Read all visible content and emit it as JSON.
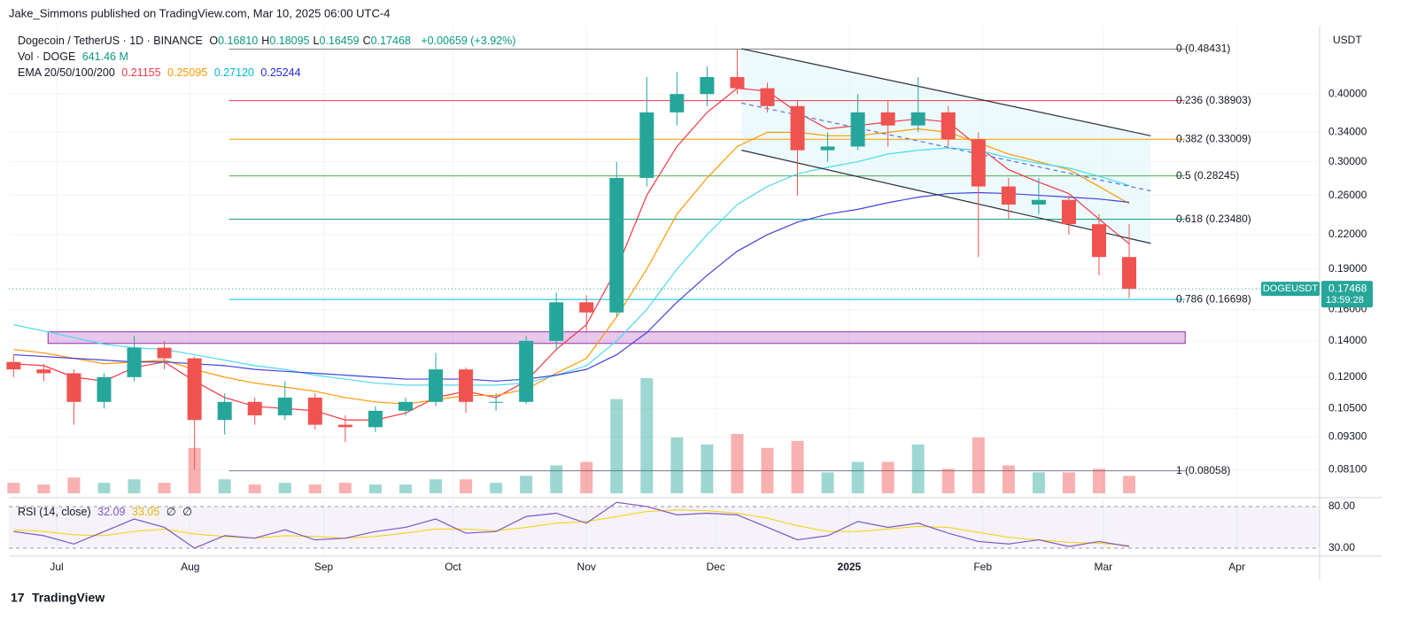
{
  "page": {
    "attribution": "Jake_Simmons published on TradingView.com, Mar 10, 2025 06:00 UTC-4",
    "footer": "TradingView",
    "currency": "USDT"
  },
  "header": {
    "symbol": "Dogecoin / TetherUS · 1D · BINANCE",
    "ohlc": [
      {
        "key": "O",
        "value": "0.16810"
      },
      {
        "key": "H",
        "value": "0.18095"
      },
      {
        "key": "L",
        "value": "0.16459"
      },
      {
        "key": "C",
        "value": "0.17468"
      }
    ],
    "change": "+0.00659 (+3.92%)",
    "vol_label": "Vol · DOGE",
    "vol_value": "641.46 M",
    "ema_label": "EMA 20/50/100/200",
    "ema_values": [
      "0.21155",
      "0.25095",
      "0.27120",
      "0.25244"
    ],
    "rsi_label": "RSI (14, close)",
    "rsi_values": [
      "32.09",
      "33.05",
      "∅",
      "∅"
    ]
  },
  "chart_data": {
    "type": "candlestick",
    "log_scale": true,
    "grid": true,
    "up_color": "#26a69a",
    "down_color": "#ef5350",
    "xlim": [
      -11.1,
      293.2
    ],
    "xticks": [
      {
        "value": 0,
        "label": "Jul"
      },
      {
        "value": 31,
        "label": "Aug"
      },
      {
        "value": 62,
        "label": "Sep"
      },
      {
        "value": 92,
        "label": "Oct"
      },
      {
        "value": 123,
        "label": "Nov"
      },
      {
        "value": 153,
        "label": "Dec"
      },
      {
        "value": 184,
        "label": "2025"
      },
      {
        "value": 215,
        "label": "Feb"
      },
      {
        "value": 243,
        "label": "Mar"
      },
      {
        "value": 274,
        "label": "Apr"
      }
    ],
    "ylim": [
      0.0724,
      0.533
    ],
    "yticks": [
      {
        "value": 0.4,
        "label": "0.40000"
      },
      {
        "value": 0.34,
        "label": "0.34000"
      },
      {
        "value": 0.3,
        "label": "0.30000"
      },
      {
        "value": 0.26,
        "label": "0.26000"
      },
      {
        "value": 0.22,
        "label": "0.22000"
      },
      {
        "value": 0.19,
        "label": "0.19000"
      },
      {
        "value": 0.16,
        "label": "0.16000"
      },
      {
        "value": 0.14,
        "label": "0.14000"
      },
      {
        "value": 0.12,
        "label": "0.12000"
      },
      {
        "value": 0.105,
        "label": "0.10500"
      },
      {
        "value": 0.093,
        "label": "0.09300"
      },
      {
        "value": 0.081,
        "label": "0.08100"
      }
    ],
    "x": [
      -10,
      -3,
      4,
      11,
      18,
      25,
      32,
      39,
      46,
      53,
      60,
      67,
      74,
      81,
      88,
      95,
      102,
      109,
      116,
      123,
      130,
      137,
      144,
      151,
      158,
      165,
      172,
      179,
      186,
      193,
      200,
      207,
      214,
      221,
      228,
      235,
      242,
      249
    ],
    "open": [
      0.128,
      0.124,
      0.122,
      0.108,
      0.12,
      0.136,
      0.13,
      0.1,
      0.108,
      0.102,
      0.11,
      0.098,
      0.097,
      0.104,
      0.108,
      0.124,
      0.108,
      0.108,
      0.14,
      0.165,
      0.158,
      0.28,
      0.37,
      0.4,
      0.43,
      0.41,
      0.38,
      0.315,
      0.32,
      0.37,
      0.35,
      0.37,
      0.33,
      0.27,
      0.25,
      0.255,
      0.23,
      0.2
    ],
    "high": [
      0.132,
      0.127,
      0.124,
      0.122,
      0.143,
      0.14,
      0.131,
      0.112,
      0.11,
      0.118,
      0.112,
      0.102,
      0.106,
      0.11,
      0.133,
      0.125,
      0.112,
      0.143,
      0.172,
      0.17,
      0.3,
      0.43,
      0.44,
      0.45,
      0.485,
      0.42,
      0.39,
      0.34,
      0.4,
      0.39,
      0.43,
      0.38,
      0.34,
      0.28,
      0.28,
      0.26,
      0.24,
      0.23
    ],
    "low": [
      0.12,
      0.118,
      0.098,
      0.105,
      0.118,
      0.124,
      0.081,
      0.094,
      0.098,
      0.1,
      0.096,
      0.091,
      0.095,
      0.102,
      0.106,
      0.103,
      0.104,
      0.107,
      0.135,
      0.146,
      0.155,
      0.27,
      0.35,
      0.38,
      0.4,
      0.37,
      0.26,
      0.3,
      0.315,
      0.32,
      0.34,
      0.32,
      0.2,
      0.235,
      0.24,
      0.22,
      0.185,
      0.168
    ],
    "close": [
      0.124,
      0.122,
      0.108,
      0.12,
      0.136,
      0.13,
      0.1,
      0.108,
      0.102,
      0.11,
      0.098,
      0.097,
      0.104,
      0.108,
      0.124,
      0.108,
      0.108,
      0.14,
      0.165,
      0.158,
      0.28,
      0.37,
      0.4,
      0.43,
      0.41,
      0.38,
      0.315,
      0.32,
      0.37,
      0.35,
      0.37,
      0.33,
      0.27,
      0.25,
      0.255,
      0.23,
      0.2,
      0.17468
    ],
    "volume": [
      30,
      25,
      45,
      30,
      40,
      30,
      130,
      40,
      25,
      30,
      25,
      30,
      25,
      25,
      40,
      40,
      30,
      50,
      80,
      90,
      270,
      330,
      160,
      140,
      170,
      130,
      150,
      60,
      90,
      90,
      140,
      70,
      160,
      80,
      60,
      60,
      70,
      50
    ],
    "ema": [
      {
        "color": "#f23645",
        "values": [
          0.127,
          0.126,
          0.12,
          0.118,
          0.125,
          0.128,
          0.118,
          0.11,
          0.106,
          0.105,
          0.104,
          0.1,
          0.1,
          0.103,
          0.11,
          0.113,
          0.11,
          0.118,
          0.135,
          0.15,
          0.19,
          0.26,
          0.32,
          0.37,
          0.41,
          0.405,
          0.37,
          0.345,
          0.35,
          0.355,
          0.36,
          0.355,
          0.32,
          0.29,
          0.275,
          0.262,
          0.235,
          0.21155
        ]
      },
      {
        "color": "#ff9800",
        "values": [
          0.135,
          0.133,
          0.13,
          0.127,
          0.128,
          0.129,
          0.124,
          0.12,
          0.117,
          0.115,
          0.113,
          0.11,
          0.108,
          0.107,
          0.109,
          0.111,
          0.111,
          0.114,
          0.122,
          0.13,
          0.155,
          0.19,
          0.24,
          0.28,
          0.32,
          0.34,
          0.34,
          0.335,
          0.335,
          0.34,
          0.345,
          0.34,
          0.325,
          0.31,
          0.3,
          0.29,
          0.27,
          0.25095
        ]
      },
      {
        "color": "#4dd9ec",
        "values": [
          0.15,
          0.146,
          0.142,
          0.138,
          0.136,
          0.135,
          0.132,
          0.129,
          0.126,
          0.124,
          0.121,
          0.119,
          0.117,
          0.116,
          0.116,
          0.116,
          0.116,
          0.117,
          0.121,
          0.126,
          0.14,
          0.16,
          0.19,
          0.22,
          0.25,
          0.27,
          0.285,
          0.293,
          0.3,
          0.31,
          0.315,
          0.318,
          0.315,
          0.305,
          0.298,
          0.292,
          0.282,
          0.2712
        ]
      },
      {
        "color": "#4343d9",
        "values": [
          0.132,
          0.131,
          0.13,
          0.129,
          0.128,
          0.128,
          0.127,
          0.126,
          0.124,
          0.123,
          0.122,
          0.121,
          0.12,
          0.119,
          0.119,
          0.119,
          0.118,
          0.119,
          0.121,
          0.124,
          0.132,
          0.145,
          0.165,
          0.185,
          0.205,
          0.22,
          0.232,
          0.24,
          0.245,
          0.252,
          0.258,
          0.262,
          0.263,
          0.262,
          0.26,
          0.258,
          0.256,
          0.25244
        ]
      }
    ],
    "fib": [
      {
        "label": "0 (0.48431)",
        "value": 0.48431,
        "color": "#787b86"
      },
      {
        "label": "0.236 (0.38903)",
        "value": 0.38903,
        "color": "#f23645"
      },
      {
        "label": "0.382 (0.33009)",
        "value": 0.33009,
        "color": "#ff9800"
      },
      {
        "label": "0.5 (0.28245)",
        "value": 0.28245,
        "color": "#4caf50"
      },
      {
        "label": "0.618 (0.23480)",
        "value": 0.2348,
        "color": "#089981"
      },
      {
        "label": "0.786 (0.16698)",
        "value": 0.16698,
        "color": "#00bcd4"
      },
      {
        "label": "1 (0.08058)",
        "value": 0.08058,
        "color": "#787b86"
      }
    ],
    "fib_x": [
      40,
      262
    ],
    "zone": {
      "x": [
        -2,
        262
      ],
      "low": 0.1385,
      "high": 0.1455,
      "color": "#9c27b0"
    },
    "channel": {
      "x": [
        159,
        254
      ],
      "upper": [
        0.485,
        0.335
      ],
      "lower": [
        0.315,
        0.212
      ],
      "mid": [
        0.385,
        0.265
      ]
    },
    "price_tag": {
      "symbol": "DOGEUSDT",
      "price": "0.17468",
      "countdown": "13:59:28"
    },
    "rsi": {
      "ylim": [
        20.4,
        87.4
      ],
      "yticks": [
        {
          "value": 80,
          "label": "80.00"
        },
        {
          "value": 30,
          "label": "30.00"
        }
      ],
      "color": "#7e57c2",
      "ma_color": "#f5d000",
      "values": [
        50,
        45,
        35,
        50,
        65,
        55,
        30,
        45,
        42,
        52,
        40,
        42,
        50,
        55,
        65,
        48,
        50,
        68,
        72,
        60,
        85,
        80,
        70,
        72,
        70,
        55,
        40,
        45,
        62,
        55,
        60,
        48,
        38,
        35,
        40,
        32,
        38,
        32.09
      ],
      "ma_values": [
        52,
        50,
        46,
        45,
        50,
        53,
        47,
        44,
        42,
        45,
        44,
        42,
        44,
        48,
        53,
        53,
        51,
        55,
        60,
        62,
        68,
        74,
        76,
        75,
        72,
        66,
        57,
        50,
        50,
        53,
        56,
        55,
        49,
        43,
        40,
        37,
        36,
        33.05
      ]
    }
  }
}
